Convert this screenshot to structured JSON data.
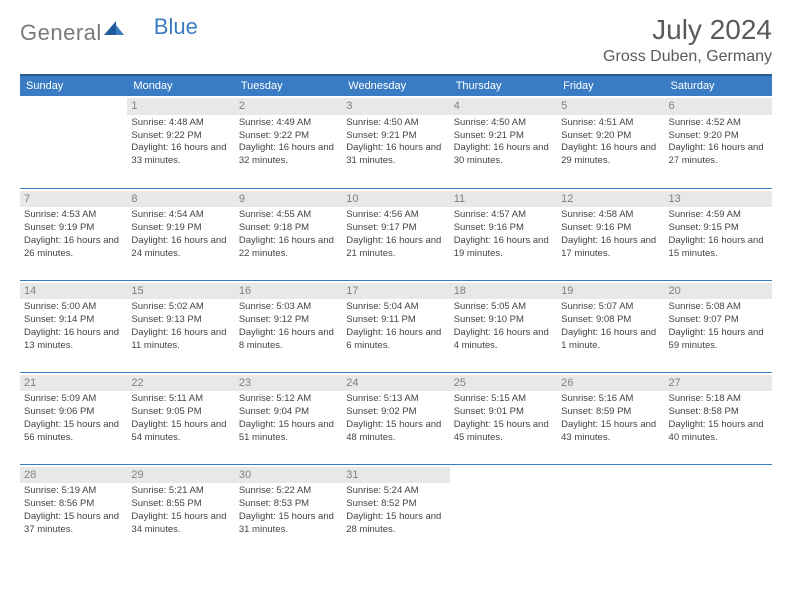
{
  "brand": {
    "part1": "General",
    "part2": "Blue"
  },
  "title": "July 2024",
  "location": "Gross Duben, Germany",
  "colors": {
    "header_bg": "#3a7cc4",
    "header_border": "#2d5c8f",
    "logo_gray": "#7a7a7a",
    "logo_blue": "#3a7cc4",
    "text": "#444444",
    "daynum_bg": "#e8e8e8",
    "daynum_color": "#808080",
    "row_divider": "#3a7cc4"
  },
  "weekdays": [
    "Sunday",
    "Monday",
    "Tuesday",
    "Wednesday",
    "Thursday",
    "Friday",
    "Saturday"
  ],
  "start_offset": 1,
  "days": [
    {
      "n": 1,
      "sunrise": "4:48 AM",
      "sunset": "9:22 PM",
      "daylight": "16 hours and 33 minutes."
    },
    {
      "n": 2,
      "sunrise": "4:49 AM",
      "sunset": "9:22 PM",
      "daylight": "16 hours and 32 minutes."
    },
    {
      "n": 3,
      "sunrise": "4:50 AM",
      "sunset": "9:21 PM",
      "daylight": "16 hours and 31 minutes."
    },
    {
      "n": 4,
      "sunrise": "4:50 AM",
      "sunset": "9:21 PM",
      "daylight": "16 hours and 30 minutes."
    },
    {
      "n": 5,
      "sunrise": "4:51 AM",
      "sunset": "9:20 PM",
      "daylight": "16 hours and 29 minutes."
    },
    {
      "n": 6,
      "sunrise": "4:52 AM",
      "sunset": "9:20 PM",
      "daylight": "16 hours and 27 minutes."
    },
    {
      "n": 7,
      "sunrise": "4:53 AM",
      "sunset": "9:19 PM",
      "daylight": "16 hours and 26 minutes."
    },
    {
      "n": 8,
      "sunrise": "4:54 AM",
      "sunset": "9:19 PM",
      "daylight": "16 hours and 24 minutes."
    },
    {
      "n": 9,
      "sunrise": "4:55 AM",
      "sunset": "9:18 PM",
      "daylight": "16 hours and 22 minutes."
    },
    {
      "n": 10,
      "sunrise": "4:56 AM",
      "sunset": "9:17 PM",
      "daylight": "16 hours and 21 minutes."
    },
    {
      "n": 11,
      "sunrise": "4:57 AM",
      "sunset": "9:16 PM",
      "daylight": "16 hours and 19 minutes."
    },
    {
      "n": 12,
      "sunrise": "4:58 AM",
      "sunset": "9:16 PM",
      "daylight": "16 hours and 17 minutes."
    },
    {
      "n": 13,
      "sunrise": "4:59 AM",
      "sunset": "9:15 PM",
      "daylight": "16 hours and 15 minutes."
    },
    {
      "n": 14,
      "sunrise": "5:00 AM",
      "sunset": "9:14 PM",
      "daylight": "16 hours and 13 minutes."
    },
    {
      "n": 15,
      "sunrise": "5:02 AM",
      "sunset": "9:13 PM",
      "daylight": "16 hours and 11 minutes."
    },
    {
      "n": 16,
      "sunrise": "5:03 AM",
      "sunset": "9:12 PM",
      "daylight": "16 hours and 8 minutes."
    },
    {
      "n": 17,
      "sunrise": "5:04 AM",
      "sunset": "9:11 PM",
      "daylight": "16 hours and 6 minutes."
    },
    {
      "n": 18,
      "sunrise": "5:05 AM",
      "sunset": "9:10 PM",
      "daylight": "16 hours and 4 minutes."
    },
    {
      "n": 19,
      "sunrise": "5:07 AM",
      "sunset": "9:08 PM",
      "daylight": "16 hours and 1 minute."
    },
    {
      "n": 20,
      "sunrise": "5:08 AM",
      "sunset": "9:07 PM",
      "daylight": "15 hours and 59 minutes."
    },
    {
      "n": 21,
      "sunrise": "5:09 AM",
      "sunset": "9:06 PM",
      "daylight": "15 hours and 56 minutes."
    },
    {
      "n": 22,
      "sunrise": "5:11 AM",
      "sunset": "9:05 PM",
      "daylight": "15 hours and 54 minutes."
    },
    {
      "n": 23,
      "sunrise": "5:12 AM",
      "sunset": "9:04 PM",
      "daylight": "15 hours and 51 minutes."
    },
    {
      "n": 24,
      "sunrise": "5:13 AM",
      "sunset": "9:02 PM",
      "daylight": "15 hours and 48 minutes."
    },
    {
      "n": 25,
      "sunrise": "5:15 AM",
      "sunset": "9:01 PM",
      "daylight": "15 hours and 45 minutes."
    },
    {
      "n": 26,
      "sunrise": "5:16 AM",
      "sunset": "8:59 PM",
      "daylight": "15 hours and 43 minutes."
    },
    {
      "n": 27,
      "sunrise": "5:18 AM",
      "sunset": "8:58 PM",
      "daylight": "15 hours and 40 minutes."
    },
    {
      "n": 28,
      "sunrise": "5:19 AM",
      "sunset": "8:56 PM",
      "daylight": "15 hours and 37 minutes."
    },
    {
      "n": 29,
      "sunrise": "5:21 AM",
      "sunset": "8:55 PM",
      "daylight": "15 hours and 34 minutes."
    },
    {
      "n": 30,
      "sunrise": "5:22 AM",
      "sunset": "8:53 PM",
      "daylight": "15 hours and 31 minutes."
    },
    {
      "n": 31,
      "sunrise": "5:24 AM",
      "sunset": "8:52 PM",
      "daylight": "15 hours and 28 minutes."
    }
  ],
  "labels": {
    "sunrise": "Sunrise:",
    "sunset": "Sunset:",
    "daylight": "Daylight:"
  }
}
